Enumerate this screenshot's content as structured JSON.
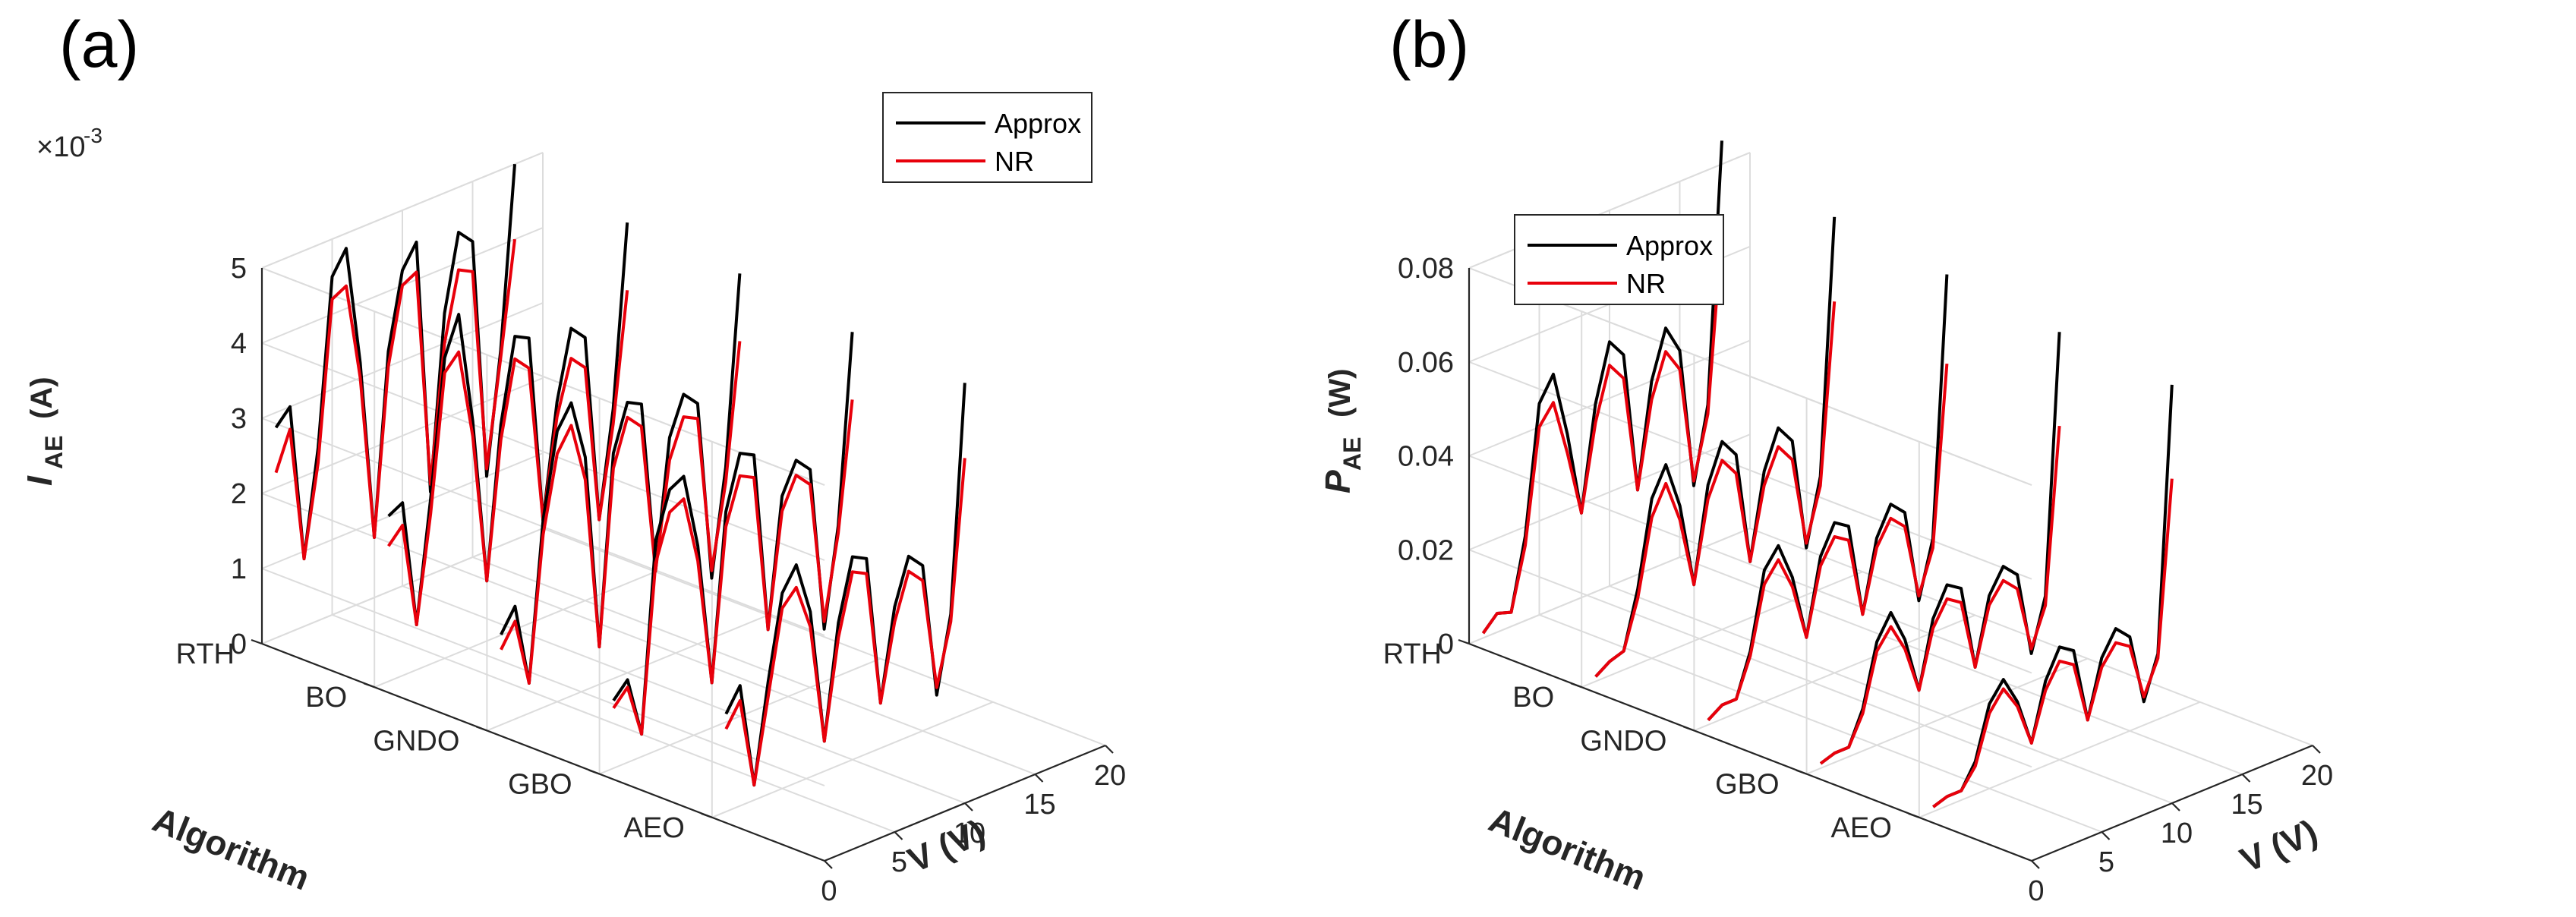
{
  "colors": {
    "approx": "#000000",
    "nr": "#e8000b",
    "axis": "#262626",
    "grid": "#dcdcdc"
  },
  "chart_data": [
    {
      "type": "line",
      "panel_label": "(a)",
      "title": "",
      "xlabel": "V (V)",
      "ylabel_main": "I",
      "ylabel_sub": "AE",
      "ylabel_unit": "(A)",
      "zlabel": "Algorithm",
      "exponent_base": "×10",
      "exponent_power": "-3",
      "xlim": [
        0,
        20
      ],
      "zlim": [
        0,
        5
      ],
      "x_ticks": [
        "0",
        "5",
        "10",
        "15",
        "20"
      ],
      "z_ticks": [
        "0",
        "1",
        "2",
        "3",
        "4",
        "5"
      ],
      "categories": [
        "RTH",
        "BO",
        "GNDO",
        "GBO",
        "AEO"
      ],
      "legend": [
        "Approx",
        "NR"
      ],
      "legend_position": "top-right",
      "series": [
        {
          "category": "RTH",
          "name": "Approx",
          "x": [
            1,
            2,
            3,
            4,
            5,
            6,
            7,
            8,
            9,
            10,
            11,
            12,
            13,
            14,
            15,
            16,
            17,
            18
          ],
          "values": [
            2.8,
            3.0,
            0.9,
            2.3,
            4.5,
            4.8,
            3.2,
            0.8,
            3.2,
            4.2,
            4.5,
            1.1,
            3.4,
            4.4,
            4.2,
            1.0,
            2.6,
            5.0
          ]
        },
        {
          "category": "RTH",
          "name": "NR",
          "x": [
            1,
            2,
            3,
            4,
            5,
            6,
            7,
            8,
            9,
            10,
            11,
            12,
            13,
            14,
            15,
            16,
            17,
            18
          ],
          "values": [
            2.2,
            2.7,
            0.9,
            2.1,
            4.2,
            4.3,
            3.0,
            0.8,
            3.0,
            4.0,
            4.1,
            1.2,
            3.0,
            3.9,
            3.8,
            1.1,
            2.5,
            4.0
          ]
        },
        {
          "category": "BO",
          "name": "Approx",
          "x": [
            1,
            2,
            3,
            4,
            5,
            6,
            7,
            8,
            9,
            10,
            11,
            12,
            13,
            14,
            15,
            16,
            17,
            18
          ],
          "values": [
            2.2,
            2.3,
            0.6,
            2.2,
            4.0,
            4.5,
            3.0,
            0.8,
            2.8,
            3.9,
            3.8,
            1.3,
            2.8,
            3.7,
            3.5,
            1.0,
            2.4,
            4.8
          ]
        },
        {
          "category": "BO",
          "name": "NR",
          "x": [
            1,
            2,
            3,
            4,
            5,
            6,
            7,
            8,
            9,
            10,
            11,
            12,
            13,
            14,
            15,
            16,
            17,
            18
          ],
          "values": [
            1.8,
            2.0,
            0.6,
            2.0,
            3.8,
            4.0,
            2.8,
            0.8,
            2.6,
            3.6,
            3.4,
            1.3,
            2.6,
            3.3,
            3.1,
            1.0,
            2.2,
            3.9
          ]
        },
        {
          "category": "GNDO",
          "name": "Approx",
          "x": [
            1,
            2,
            3,
            4,
            5,
            6,
            7,
            8,
            9,
            10,
            11,
            12,
            13,
            14,
            15,
            16,
            17,
            18
          ],
          "values": [
            1.2,
            1.5,
            0.4,
            2.5,
            3.6,
            3.9,
            3.1,
            0.5,
            3.0,
            3.6,
            3.5,
            1.2,
            2.9,
            3.4,
            3.2,
            0.8,
            2.2,
            4.7
          ]
        },
        {
          "category": "GNDO",
          "name": "NR",
          "x": [
            1,
            2,
            3,
            4,
            5,
            6,
            7,
            8,
            9,
            10,
            11,
            12,
            13,
            14,
            15,
            16,
            17,
            18
          ],
          "values": [
            1.0,
            1.3,
            0.4,
            2.3,
            3.3,
            3.6,
            2.8,
            0.5,
            2.8,
            3.4,
            3.2,
            1.2,
            2.6,
            3.1,
            3.0,
            0.9,
            2.0,
            3.8
          ]
        },
        {
          "category": "GBO",
          "name": "Approx",
          "x": [
            1,
            2,
            3,
            4,
            5,
            6,
            7,
            8,
            9,
            10,
            11,
            12,
            13,
            14,
            15,
            16,
            17,
            18
          ],
          "values": [
            0.9,
            1.1,
            0.3,
            2.8,
            3.4,
            3.5,
            2.5,
            0.6,
            2.8,
            3.5,
            3.4,
            1.0,
            2.7,
            3.1,
            2.9,
            0.7,
            2.0,
            4.5
          ]
        },
        {
          "category": "GBO",
          "name": "NR",
          "x": [
            1,
            2,
            3,
            4,
            5,
            6,
            7,
            8,
            9,
            10,
            11,
            12,
            13,
            14,
            15,
            16,
            17,
            18
          ],
          "values": [
            0.8,
            1.0,
            0.3,
            2.5,
            3.1,
            3.2,
            2.3,
            0.6,
            2.6,
            3.2,
            3.1,
            1.0,
            2.5,
            2.9,
            2.7,
            0.8,
            1.9,
            3.6
          ]
        },
        {
          "category": "AEO",
          "name": "Approx",
          "x": [
            1,
            2,
            3,
            4,
            5,
            6,
            7,
            8,
            9,
            10,
            11,
            12,
            13,
            14,
            15,
            16,
            17,
            18
          ],
          "values": [
            1.3,
            1.6,
            0.2,
            1.5,
            2.6,
            2.9,
            2.2,
            0.4,
            1.9,
            2.7,
            2.6,
            0.6,
            1.8,
            2.4,
            2.2,
            0.4,
            1.4,
            4.4
          ]
        },
        {
          "category": "AEO",
          "name": "NR",
          "x": [
            1,
            2,
            3,
            4,
            5,
            6,
            7,
            8,
            9,
            10,
            11,
            12,
            13,
            14,
            15,
            16,
            17,
            18
          ],
          "values": [
            1.1,
            1.4,
            0.2,
            1.3,
            2.4,
            2.6,
            2.0,
            0.4,
            1.7,
            2.5,
            2.4,
            0.6,
            1.6,
            2.2,
            2.0,
            0.5,
            1.3,
            3.4
          ]
        }
      ]
    },
    {
      "type": "line",
      "panel_label": "(b)",
      "title": "",
      "xlabel": "V (V)",
      "ylabel_main": "P",
      "ylabel_sub": "AE",
      "ylabel_unit": "(W)",
      "zlabel": "Algorithm",
      "xlim": [
        0,
        20
      ],
      "zlim": [
        0,
        0.08
      ],
      "x_ticks": [
        "0",
        "5",
        "10",
        "15",
        "20"
      ],
      "z_ticks": [
        "0",
        "0.02",
        "0.04",
        "0.06",
        "0.08"
      ],
      "categories": [
        "RTH",
        "BO",
        "GNDO",
        "GBO",
        "AEO"
      ],
      "legend": [
        "Approx",
        "NR"
      ],
      "legend_position": "top-left",
      "series": [
        {
          "category": "RTH",
          "name": "Approx",
          "x": [
            1,
            2,
            3,
            4,
            5,
            6,
            7,
            8,
            9,
            10,
            11,
            12,
            13,
            14,
            15,
            16,
            17,
            18
          ],
          "values": [
            0.001,
            0.004,
            0.003,
            0.018,
            0.045,
            0.05,
            0.036,
            0.018,
            0.04,
            0.052,
            0.048,
            0.018,
            0.04,
            0.05,
            0.044,
            0.014,
            0.03,
            0.085
          ]
        },
        {
          "category": "RTH",
          "name": "NR",
          "x": [
            1,
            2,
            3,
            4,
            5,
            6,
            7,
            8,
            9,
            10,
            11,
            12,
            13,
            14,
            15,
            16,
            17,
            18
          ],
          "values": [
            0.001,
            0.004,
            0.003,
            0.016,
            0.04,
            0.044,
            0.032,
            0.018,
            0.036,
            0.047,
            0.043,
            0.018,
            0.036,
            0.045,
            0.04,
            0.015,
            0.028,
            0.066
          ]
        },
        {
          "category": "BO",
          "name": "Approx",
          "x": [
            1,
            2,
            3,
            4,
            5,
            6,
            7,
            8,
            9,
            10,
            11,
            12,
            13,
            14,
            15,
            16,
            17,
            18
          ],
          "values": [
            0.001,
            0.003,
            0.004,
            0.016,
            0.034,
            0.04,
            0.03,
            0.012,
            0.032,
            0.04,
            0.036,
            0.012,
            0.03,
            0.038,
            0.034,
            0.01,
            0.024,
            0.078
          ]
        },
        {
          "category": "BO",
          "name": "NR",
          "x": [
            1,
            2,
            3,
            4,
            5,
            6,
            7,
            8,
            9,
            10,
            11,
            12,
            13,
            14,
            15,
            16,
            17,
            18
          ],
          "values": [
            0.001,
            0.003,
            0.004,
            0.014,
            0.03,
            0.036,
            0.027,
            0.012,
            0.029,
            0.036,
            0.032,
            0.012,
            0.027,
            0.034,
            0.03,
            0.011,
            0.022,
            0.06
          ]
        },
        {
          "category": "GNDO",
          "name": "Approx",
          "x": [
            1,
            2,
            3,
            4,
            5,
            6,
            7,
            8,
            9,
            10,
            11,
            12,
            13,
            14,
            15,
            16,
            17,
            18
          ],
          "values": [
            0.001,
            0.003,
            0.003,
            0.012,
            0.028,
            0.032,
            0.024,
            0.01,
            0.026,
            0.032,
            0.03,
            0.01,
            0.025,
            0.031,
            0.028,
            0.008,
            0.02,
            0.075
          ]
        },
        {
          "category": "GNDO",
          "name": "NR",
          "x": [
            1,
            2,
            3,
            4,
            5,
            6,
            7,
            8,
            9,
            10,
            11,
            12,
            13,
            14,
            15,
            16,
            17,
            18
          ],
          "values": [
            0.001,
            0.003,
            0.003,
            0.011,
            0.025,
            0.029,
            0.022,
            0.01,
            0.024,
            0.029,
            0.027,
            0.01,
            0.023,
            0.028,
            0.025,
            0.009,
            0.018,
            0.056
          ]
        },
        {
          "category": "GBO",
          "name": "Approx",
          "x": [
            1,
            2,
            3,
            4,
            5,
            6,
            7,
            8,
            9,
            10,
            11,
            12,
            13,
            14,
            15,
            16,
            17,
            18
          ],
          "values": [
            0.001,
            0.002,
            0.002,
            0.009,
            0.022,
            0.027,
            0.02,
            0.008,
            0.022,
            0.028,
            0.026,
            0.008,
            0.022,
            0.027,
            0.024,
            0.006,
            0.017,
            0.072
          ]
        },
        {
          "category": "GBO",
          "name": "NR",
          "x": [
            1,
            2,
            3,
            4,
            5,
            6,
            7,
            8,
            9,
            10,
            11,
            12,
            13,
            14,
            15,
            16,
            17,
            18
          ],
          "values": [
            0.001,
            0.002,
            0.002,
            0.008,
            0.02,
            0.024,
            0.018,
            0.008,
            0.02,
            0.025,
            0.023,
            0.008,
            0.02,
            0.024,
            0.021,
            0.007,
            0.015,
            0.052
          ]
        },
        {
          "category": "AEO",
          "name": "Approx",
          "x": [
            1,
            2,
            3,
            4,
            5,
            6,
            7,
            8,
            9,
            10,
            11,
            12,
            13,
            14,
            15,
            16,
            17,
            18
          ],
          "values": [
            0.001,
            0.002,
            0.002,
            0.007,
            0.018,
            0.022,
            0.016,
            0.006,
            0.018,
            0.024,
            0.022,
            0.006,
            0.018,
            0.023,
            0.02,
            0.005,
            0.014,
            0.07
          ]
        },
        {
          "category": "AEO",
          "name": "NR",
          "x": [
            1,
            2,
            3,
            4,
            5,
            6,
            7,
            8,
            9,
            10,
            11,
            12,
            13,
            14,
            15,
            16,
            17,
            18
          ],
          "values": [
            0.001,
            0.002,
            0.002,
            0.006,
            0.016,
            0.02,
            0.015,
            0.006,
            0.016,
            0.021,
            0.019,
            0.006,
            0.016,
            0.02,
            0.018,
            0.006,
            0.013,
            0.05
          ]
        }
      ]
    }
  ]
}
